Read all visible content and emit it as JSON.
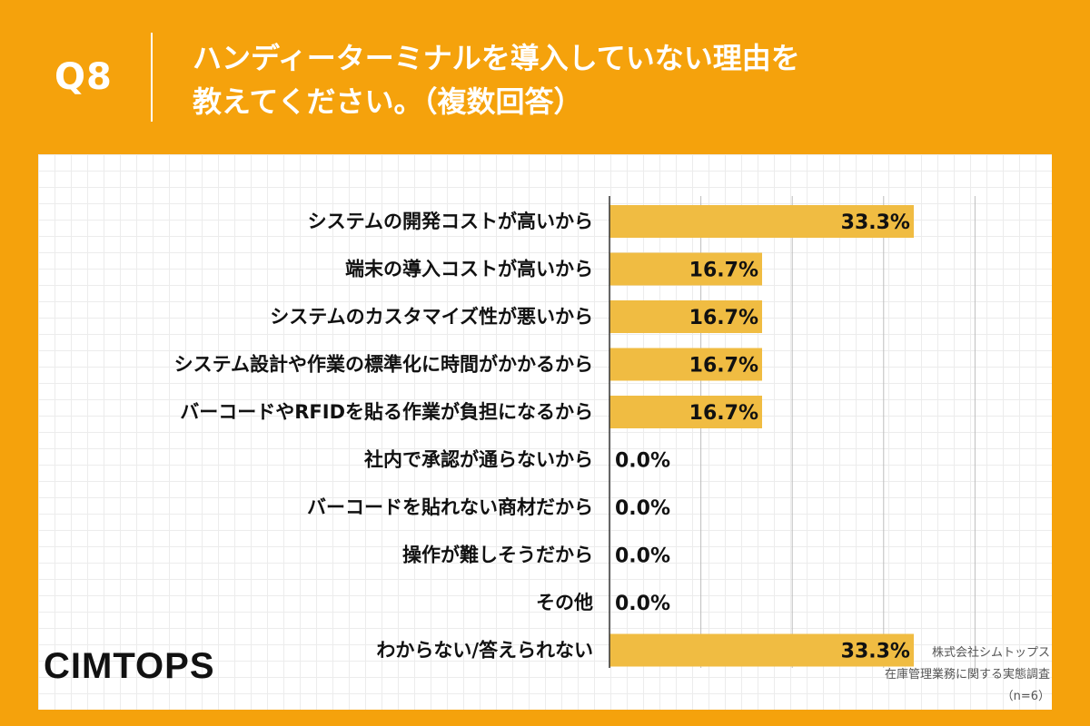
{
  "header": {
    "q_number": "Q8",
    "question_line1": "ハンディーターミナルを導入していない理由を",
    "question_line2": "教えてください。（複数回答）"
  },
  "chart_data": {
    "type": "bar",
    "orientation": "horizontal",
    "categories": [
      "システムの開発コストが高いから",
      "端末の導入コストが高いから",
      "システムのカスタマイズ性が悪いから",
      "システム設計や作業の標準化に時間がかかるから",
      "バーコードやRFIDを貼る作業が負担になるから",
      "社内で承認が通らないから",
      "バーコードを貼れない商材だから",
      "操作が難しそうだから",
      "その他",
      "わからない/答えられない"
    ],
    "values": [
      33.3,
      16.7,
      16.7,
      16.7,
      16.7,
      0.0,
      0.0,
      0.0,
      0.0,
      33.3
    ],
    "value_labels": [
      "33.3%",
      "16.7%",
      "16.7%",
      "16.7%",
      "16.7%",
      "0.0%",
      "0.0%",
      "0.0%",
      "0.0%",
      "33.3%"
    ],
    "xlim": [
      0,
      40
    ],
    "grid": true,
    "bar_color": "#f0bc42"
  },
  "brand": {
    "logo_text": "CIMTOPS"
  },
  "source": {
    "line1": "株式会社シムトップス",
    "line2": "在庫管理業務に関する実態調査",
    "line3": "（n=6）"
  }
}
